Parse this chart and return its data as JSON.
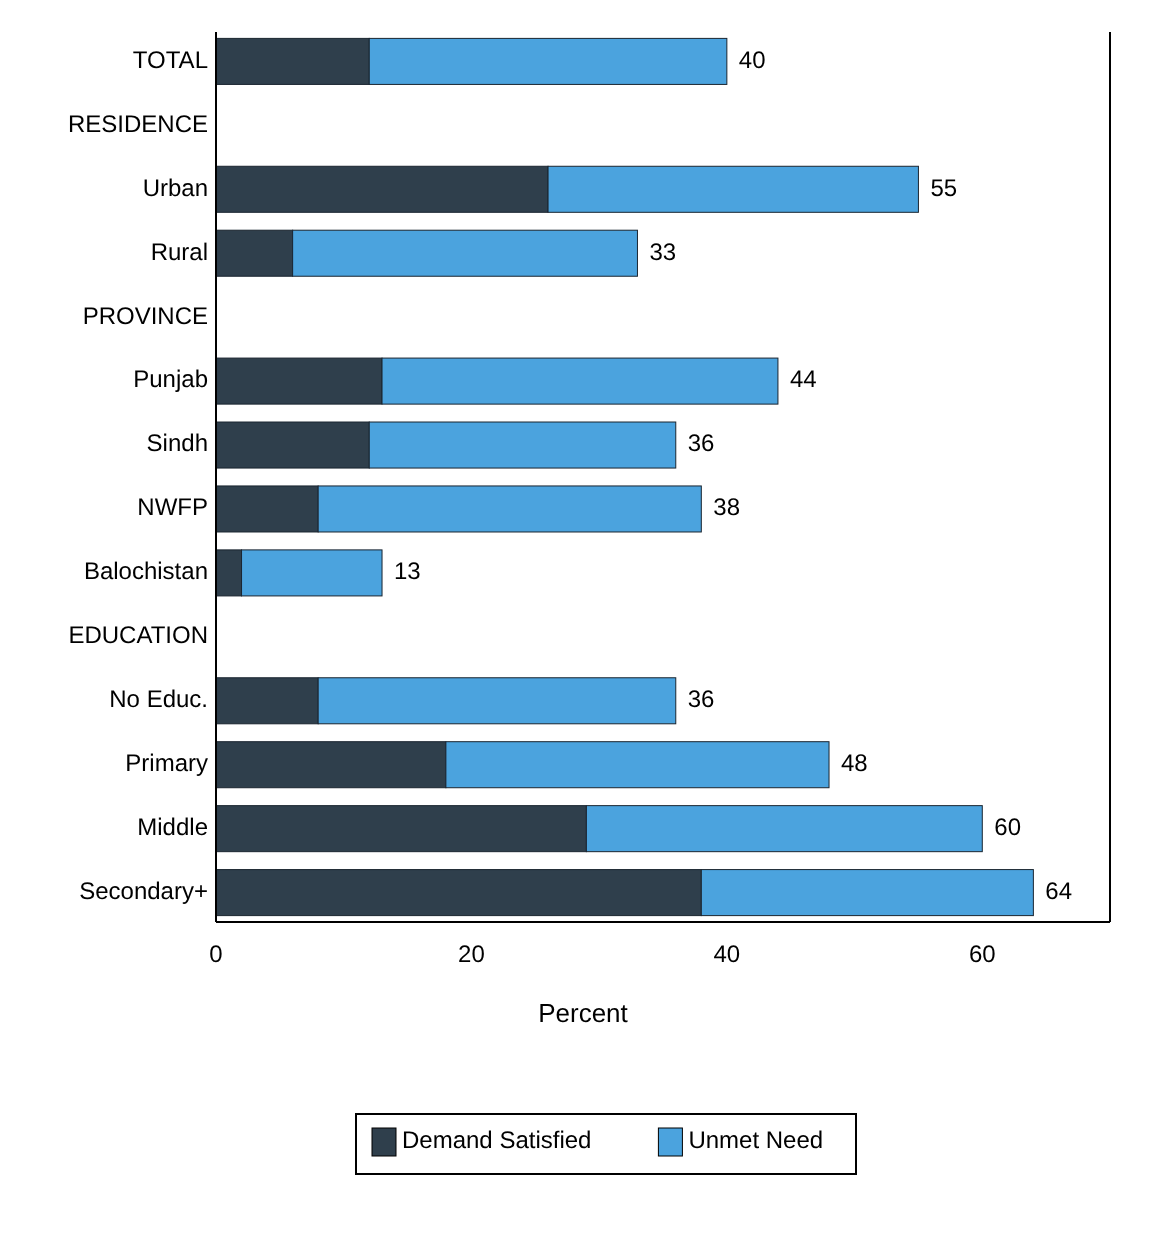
{
  "chart_data": {
    "type": "bar",
    "orientation": "horizontal",
    "stacked": true,
    "xlabel": "Percent",
    "categories": [
      "TOTAL",
      "RESIDENCE",
      "Urban",
      "Rural",
      "PROVINCE",
      "Punjab",
      "Sindh",
      "NWFP",
      "Balochistan",
      "EDUCATION",
      "No Educ.",
      "Primary",
      "Middle",
      "Secondary+"
    ],
    "series": [
      {
        "name": "Demand Satisfied",
        "color": "#2f3f4c",
        "values": [
          12,
          null,
          26,
          6,
          null,
          13,
          12,
          8,
          2,
          null,
          8,
          18,
          29,
          38
        ]
      },
      {
        "name": "Unmet Need",
        "color": "#4ba3de",
        "values": [
          28,
          null,
          29,
          27,
          null,
          31,
          24,
          30,
          11,
          null,
          28,
          30,
          31,
          26
        ]
      }
    ],
    "totals": [
      "40",
      null,
      "55",
      "33",
      null,
      "44",
      "36",
      "38",
      "13",
      null,
      "36",
      "48",
      "60",
      "64"
    ],
    "xlim": [
      0,
      70
    ],
    "xticks": [
      0,
      20,
      40,
      60
    ],
    "legend": "bottom",
    "grid": false
  }
}
